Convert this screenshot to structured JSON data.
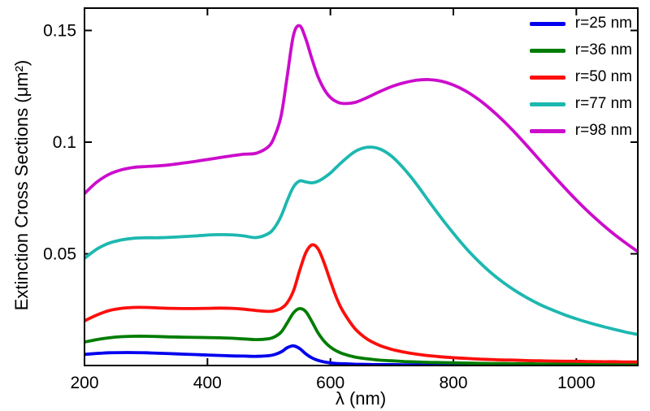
{
  "figure": {
    "xlabel": "λ (nm)",
    "ylabel": "Extinction Cross Sections (μm²)"
  },
  "chart_data": {
    "type": "line",
    "title": "",
    "xlabel": "λ (nm)",
    "ylabel": "Extinction Cross Sections (μm²)",
    "xlim": [
      200,
      1100
    ],
    "ylim": [
      0,
      0.16
    ],
    "xticks": [
      200,
      400,
      600,
      800,
      1000
    ],
    "yticks": [
      0.05,
      0.1,
      0.15
    ],
    "ytick_labels": [
      "0.05",
      "0.1",
      "0.15"
    ],
    "grid": false,
    "legend_position": "top-right",
    "x": [
      200,
      220,
      240,
      260,
      280,
      300,
      320,
      340,
      360,
      380,
      400,
      420,
      440,
      460,
      480,
      500,
      510,
      520,
      530,
      540,
      550,
      560,
      570,
      580,
      590,
      600,
      610,
      620,
      640,
      660,
      680,
      700,
      720,
      740,
      760,
      780,
      800,
      820,
      840,
      860,
      880,
      900,
      920,
      940,
      960,
      980,
      1000,
      1020,
      1040,
      1060,
      1080,
      1100
    ],
    "series": [
      {
        "name": "r=25 nm",
        "color": "#0000ee",
        "values": [
          0.005,
          0.0054,
          0.0057,
          0.0058,
          0.0058,
          0.0057,
          0.0055,
          0.0053,
          0.0051,
          0.0049,
          0.0047,
          0.0045,
          0.0043,
          0.0042,
          0.0041,
          0.0044,
          0.005,
          0.0061,
          0.008,
          0.0088,
          0.0076,
          0.0052,
          0.0034,
          0.0023,
          0.0016,
          0.0012,
          0.0009,
          0.0008,
          0.0006,
          0.0005,
          0.0004,
          0.0004,
          0.0003,
          0.0003,
          0.0003,
          0.0003,
          0.0003,
          0.0002,
          0.0002,
          0.0002,
          0.0002,
          0.0002,
          0.0002,
          0.0002,
          0.0002,
          0.0002,
          0.0002,
          0.0002,
          0.0002,
          0.0002,
          0.0002,
          0.0002
        ]
      },
      {
        "name": "r=36 nm",
        "color": "#007d00",
        "values": [
          0.0105,
          0.0116,
          0.0124,
          0.0129,
          0.0131,
          0.0131,
          0.013,
          0.0128,
          0.0127,
          0.0126,
          0.0125,
          0.0124,
          0.0122,
          0.0119,
          0.0116,
          0.012,
          0.013,
          0.015,
          0.0192,
          0.0236,
          0.0255,
          0.0241,
          0.0196,
          0.0146,
          0.0108,
          0.0082,
          0.0065,
          0.0053,
          0.0038,
          0.003,
          0.0024,
          0.0021,
          0.0018,
          0.0016,
          0.0014,
          0.0013,
          0.0012,
          0.0011,
          0.001,
          0.0009,
          0.0009,
          0.0008,
          0.0008,
          0.0007,
          0.0007,
          0.0007,
          0.0006,
          0.0006,
          0.0006,
          0.0005,
          0.0005,
          0.0005
        ]
      },
      {
        "name": "r=50 nm",
        "color": "#fb0f0c",
        "values": [
          0.02,
          0.0226,
          0.0246,
          0.0256,
          0.026,
          0.026,
          0.0258,
          0.0256,
          0.0255,
          0.0255,
          0.0256,
          0.0257,
          0.0256,
          0.0252,
          0.0246,
          0.0242,
          0.0246,
          0.0256,
          0.0282,
          0.0335,
          0.0425,
          0.0505,
          0.054,
          0.0522,
          0.0458,
          0.0378,
          0.0303,
          0.0245,
          0.0165,
          0.0118,
          0.009,
          0.0072,
          0.006,
          0.0051,
          0.0044,
          0.0039,
          0.0035,
          0.0032,
          0.0029,
          0.0027,
          0.0025,
          0.0024,
          0.0022,
          0.0021,
          0.002,
          0.0019,
          0.0019,
          0.0018,
          0.0017,
          0.0017,
          0.0016,
          0.0016
        ]
      },
      {
        "name": "r=77 nm",
        "color": "#1cb8b0",
        "values": [
          0.048,
          0.0521,
          0.0548,
          0.0562,
          0.057,
          0.0572,
          0.0572,
          0.0574,
          0.0577,
          0.058,
          0.0584,
          0.0586,
          0.0585,
          0.058,
          0.0573,
          0.0592,
          0.0621,
          0.067,
          0.074,
          0.08,
          0.0826,
          0.0822,
          0.0818,
          0.0825,
          0.0841,
          0.0862,
          0.0888,
          0.0914,
          0.0958,
          0.0977,
          0.097,
          0.0936,
          0.088,
          0.0812,
          0.0736,
          0.0662,
          0.0592,
          0.0527,
          0.0469,
          0.0418,
          0.0374,
          0.0336,
          0.0303,
          0.0274,
          0.025,
          0.0228,
          0.0209,
          0.0192,
          0.0177,
          0.0163,
          0.015,
          0.0139
        ]
      },
      {
        "name": "r=98 nm",
        "color": "#cc0ccc",
        "values": [
          0.077,
          0.0821,
          0.0856,
          0.0876,
          0.0887,
          0.0891,
          0.0894,
          0.0899,
          0.0906,
          0.0914,
          0.0922,
          0.0931,
          0.0939,
          0.0946,
          0.0951,
          0.0982,
          0.1032,
          0.112,
          0.13,
          0.148,
          0.1521,
          0.1462,
          0.1372,
          0.1292,
          0.1236,
          0.12,
          0.1181,
          0.1173,
          0.1178,
          0.12,
          0.1226,
          0.1249,
          0.1266,
          0.1277,
          0.128,
          0.1273,
          0.1256,
          0.1229,
          0.1193,
          0.1149,
          0.1099,
          0.1043,
          0.0983,
          0.0921,
          0.0859,
          0.0799,
          0.0741,
          0.0687,
          0.0637,
          0.0591,
          0.0549,
          0.051
        ]
      }
    ]
  }
}
